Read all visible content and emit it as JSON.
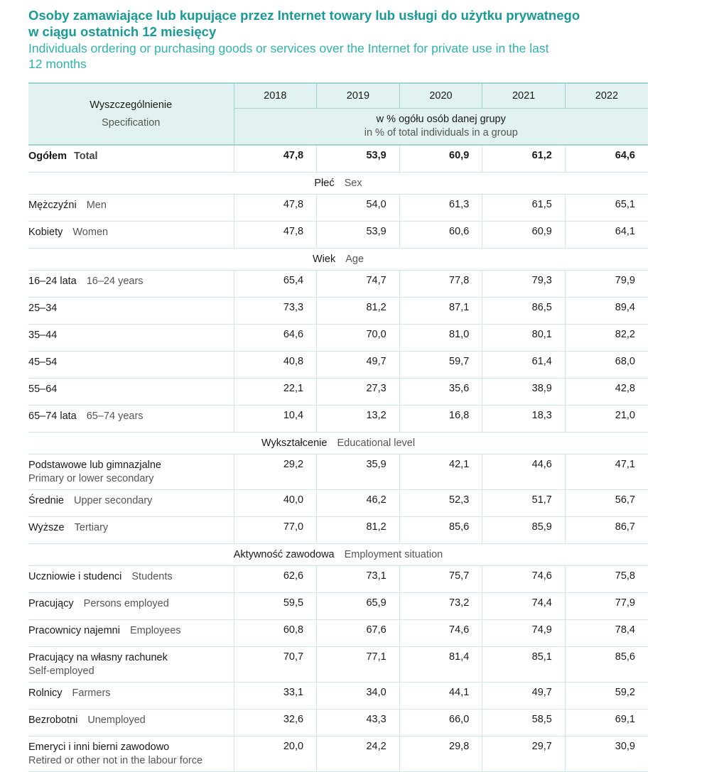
{
  "title": {
    "pl_line1": "Osoby zamawiające lub kupujące przez Internet towary lub usługi do użytku prywatnego",
    "pl_line2": "w ciągu ostatnich 12 miesięcy",
    "en_line1": "Individuals ordering or purchasing goods or services over the Internet for private use in the last",
    "en_line2": "12 months"
  },
  "header": {
    "spec_pl": "Wyszczególnienie",
    "spec_en": "Specification",
    "years": [
      "2018",
      "2019",
      "2020",
      "2021",
      "2022"
    ],
    "unit_pl": "w % ogółu osób danej grupy",
    "unit_en": "in % of total individuals in a group"
  },
  "total": {
    "pl": "Ogółem",
    "en": "Total",
    "values": [
      "47,8",
      "53,9",
      "60,9",
      "61,2",
      "64,6"
    ]
  },
  "sections": [
    {
      "pl": "Płeć",
      "en": "Sex",
      "rows": [
        {
          "pl": "Mężczyźni",
          "en": "Men",
          "values": [
            "47,8",
            "54,0",
            "61,3",
            "61,5",
            "65,1"
          ]
        },
        {
          "pl": "Kobiety",
          "en": "Women",
          "values": [
            "47,8",
            "53,9",
            "60,6",
            "60,9",
            "64,1"
          ]
        }
      ]
    },
    {
      "pl": "Wiek",
      "en": "Age",
      "rows": [
        {
          "pl": "16–24 lata",
          "en": "16–24 years",
          "values": [
            "65,4",
            "74,7",
            "77,8",
            "79,3",
            "79,9"
          ]
        },
        {
          "pl": "25–34",
          "en": "",
          "values": [
            "73,3",
            "81,2",
            "87,1",
            "86,5",
            "89,4"
          ]
        },
        {
          "pl": "35–44",
          "en": "",
          "values": [
            "64,6",
            "70,0",
            "81,0",
            "80,1",
            "82,2"
          ]
        },
        {
          "pl": "45–54",
          "en": "",
          "values": [
            "40,8",
            "49,7",
            "59,7",
            "61,4",
            "68,0"
          ]
        },
        {
          "pl": "55–64",
          "en": "",
          "values": [
            "22,1",
            "27,3",
            "35,6",
            "38,9",
            "42,8"
          ]
        },
        {
          "pl": "65–74 lata",
          "en": "65–74 years",
          "values": [
            "10,4",
            "13,2",
            "16,8",
            "18,3",
            "21,0"
          ]
        }
      ]
    },
    {
      "pl": "Wykształcenie",
      "en": "Educational level",
      "rows": [
        {
          "pl": "Podstawowe lub gimnazjalne",
          "en2": "Primary or lower secondary",
          "values": [
            "29,2",
            "35,9",
            "42,1",
            "44,6",
            "47,1"
          ]
        },
        {
          "pl": "Średnie",
          "en": "Upper secondary",
          "values": [
            "40,0",
            "46,2",
            "52,3",
            "51,7",
            "56,7"
          ]
        },
        {
          "pl": "Wyższe",
          "en": "Tertiary",
          "values": [
            "77,0",
            "81,2",
            "85,6",
            "85,9",
            "86,7"
          ]
        }
      ]
    },
    {
      "pl": "Aktywność zawodowa",
      "en": "Employment situation",
      "rows": [
        {
          "pl": "Uczniowie i studenci",
          "en": "Students",
          "values": [
            "62,6",
            "73,1",
            "75,7",
            "74,6",
            "75,8"
          ]
        },
        {
          "pl": "Pracujący",
          "en": "Persons employed",
          "values": [
            "59,5",
            "65,9",
            "73,2",
            "74,4",
            "77,9"
          ]
        },
        {
          "pl": "Pracownicy najemni",
          "en": "Employees",
          "values": [
            "60,8",
            "67,6",
            "74,6",
            "74,9",
            "78,4"
          ]
        },
        {
          "pl": "Pracujący na własny rachunek",
          "en2": "Self-employed",
          "values": [
            "70,7",
            "77,1",
            "81,4",
            "85,1",
            "85,6"
          ]
        },
        {
          "pl": "Rolnicy",
          "en": "Farmers",
          "values": [
            "33,1",
            "34,0",
            "44,1",
            "49,7",
            "59,2"
          ]
        },
        {
          "pl": "Bezrobotni",
          "en": "Unemployed",
          "values": [
            "32,6",
            "43,3",
            "66,0",
            "58,5",
            "69,1"
          ]
        },
        {
          "pl": "Emeryci i inni bierni zawodowo",
          "en2": "Retired or other not in the labour force",
          "values": [
            "20,0",
            "24,2",
            "29,8",
            "29,7",
            "30,9"
          ]
        }
      ]
    }
  ]
}
